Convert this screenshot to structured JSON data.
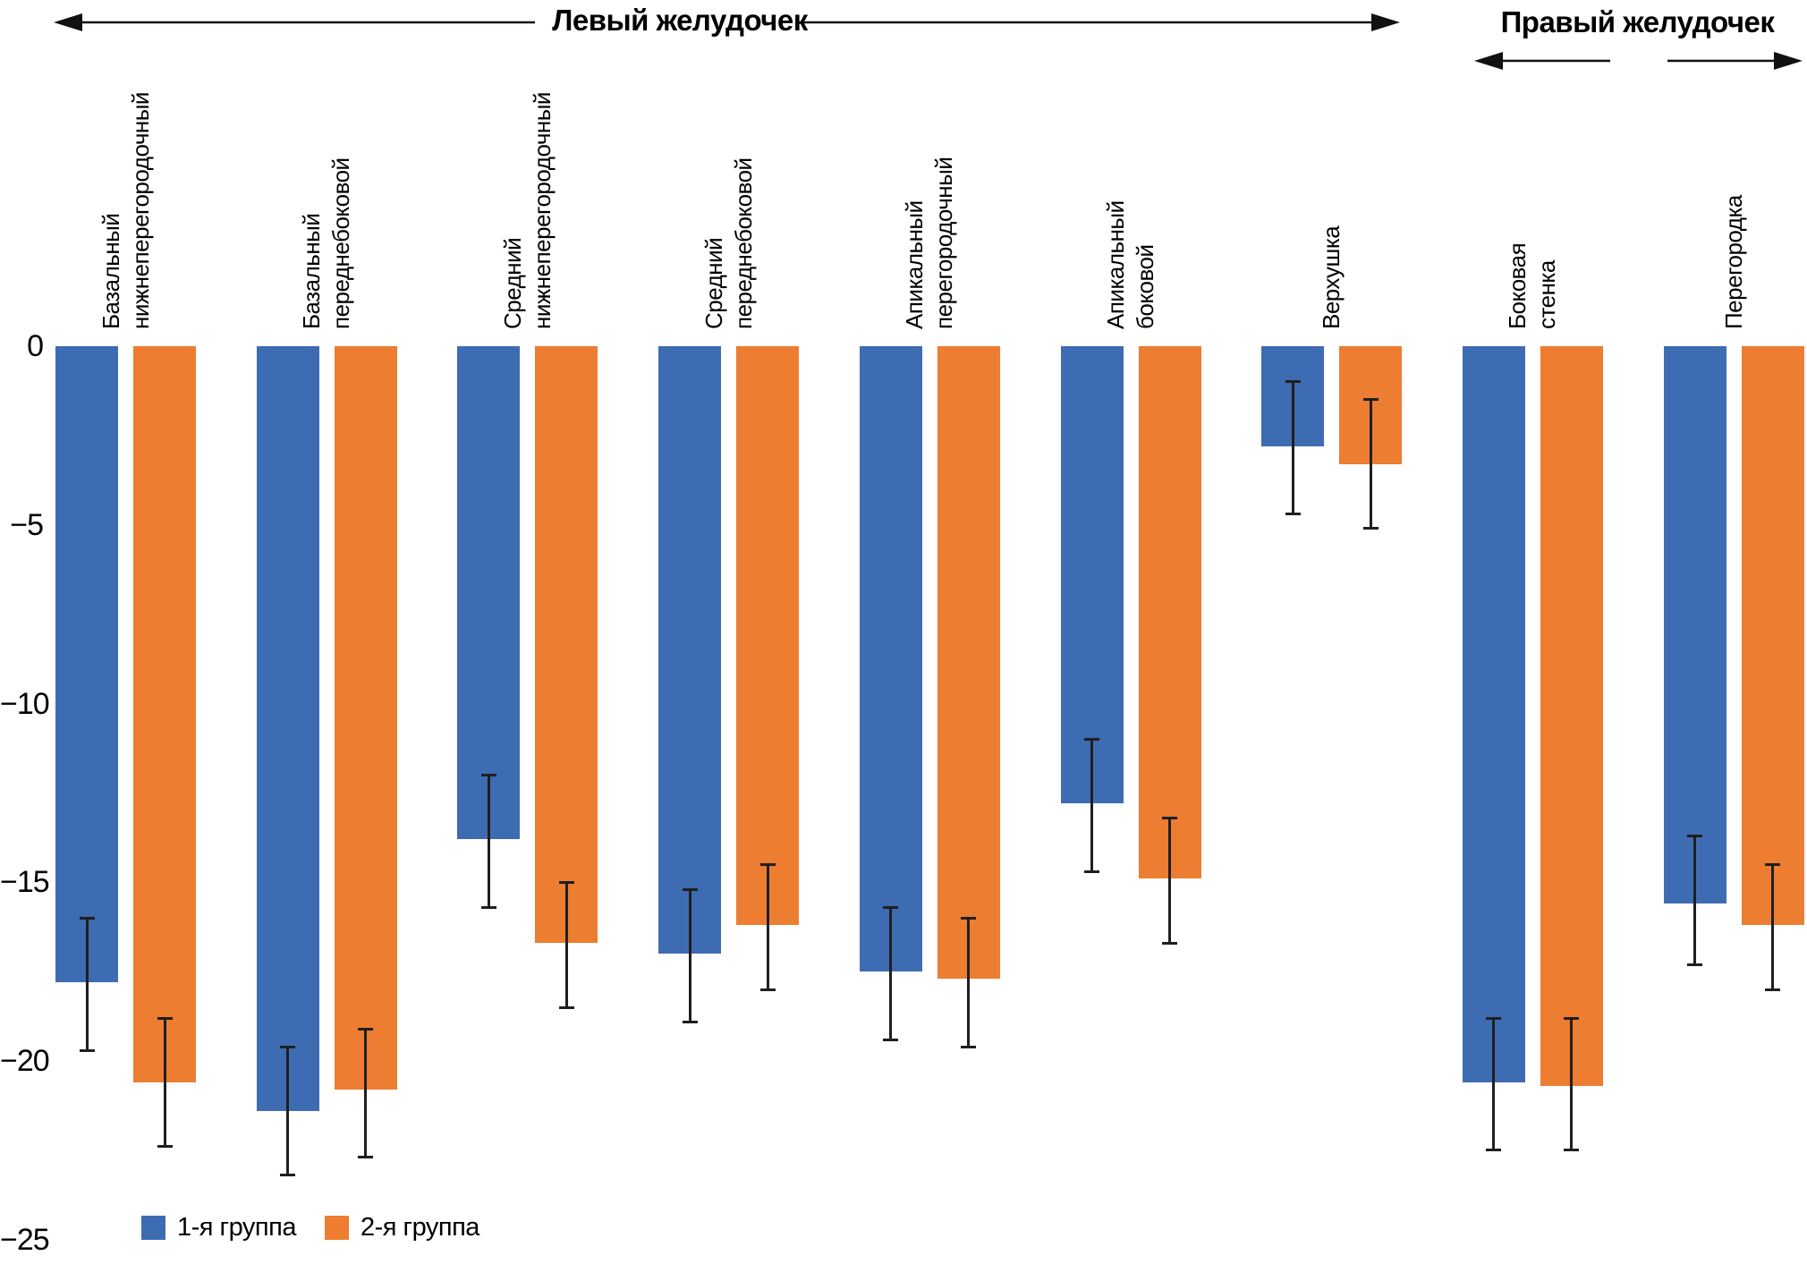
{
  "header": {
    "left": "Левый желудочек",
    "right": "Правый желудочек"
  },
  "colors": {
    "group1": "#3E6CB3",
    "group2": "#ED7D31",
    "error_bar": "#1f1f1f",
    "arrow": "#111111"
  },
  "y_axis": {
    "tick_labels": [
      "0",
      "−5",
      "−10",
      "−15",
      "−20",
      "−25"
    ],
    "tick_values": [
      0,
      -5,
      -10,
      -15,
      -20,
      -25
    ]
  },
  "legend": {
    "items": [
      {
        "label": "1-я группа"
      },
      {
        "label": "2-я группа"
      }
    ]
  },
  "chart_data": {
    "type": "bar",
    "title": "",
    "xlabel": "",
    "ylabel": "",
    "ylim": [
      -25,
      0
    ],
    "grid": false,
    "legend_position": "bottom-left",
    "error_bars": "both-directions-with-caps",
    "group_headers": [
      {
        "label": "Левый желудочек",
        "category_indexes": [
          0,
          1,
          2,
          3,
          4,
          5,
          6
        ]
      },
      {
        "label": "Правый желудочек",
        "category_indexes": [
          7,
          8
        ]
      }
    ],
    "categories": [
      "Базальный нижнеперегородочный",
      "Базальный переднебоковой",
      "Средний нижнеперегородочный",
      "Средний переднебоковой",
      "Апикальный перегородочный",
      "Апикальный боковой",
      "Верхушка",
      "Боковая стенка",
      "Перегородка"
    ],
    "category_label_lines": [
      [
        "Базальный",
        "нижнеперегородочный"
      ],
      [
        "Базальный",
        "переднебоковой"
      ],
      [
        "Средний",
        "нижнеперегородочный"
      ],
      [
        "Средний",
        "переднебоковой"
      ],
      [
        "Апикальный",
        "перегородочный"
      ],
      [
        "Апикальный",
        "боковой"
      ],
      [
        "Верхушка"
      ],
      [
        "Боковая",
        "стенка"
      ],
      [
        "Перегородка"
      ]
    ],
    "series": [
      {
        "name": "1-я группа",
        "color": "#3E6CB3",
        "values": [
          -17.8,
          -21.4,
          -13.8,
          -17.0,
          -17.5,
          -12.8,
          -2.8,
          -20.6,
          -15.6
        ],
        "error_high": [
          -16.0,
          -19.6,
          -12.0,
          -15.2,
          -15.7,
          -11.0,
          -1.0,
          -18.8,
          -13.7
        ],
        "error_low": [
          -19.7,
          -23.2,
          -15.7,
          -18.9,
          -19.4,
          -14.7,
          -4.7,
          -22.5,
          -17.3
        ]
      },
      {
        "name": "2-я группа",
        "color": "#ED7D31",
        "values": [
          -20.6,
          -20.8,
          -16.7,
          -16.2,
          -17.7,
          -14.9,
          -3.3,
          -20.7,
          -16.2
        ],
        "error_high": [
          -18.8,
          -19.1,
          -15.0,
          -14.5,
          -16.0,
          -13.2,
          -1.5,
          -18.8,
          -14.5
        ],
        "error_low": [
          -22.4,
          -22.7,
          -18.5,
          -18.0,
          -19.6,
          -16.7,
          -5.1,
          -22.5,
          -18.0
        ]
      }
    ]
  }
}
